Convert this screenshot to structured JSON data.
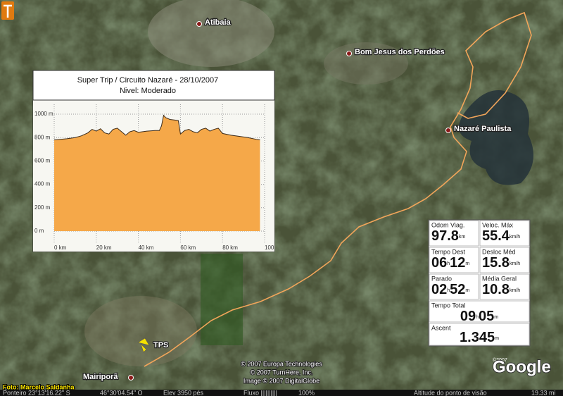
{
  "places": [
    "Atibaia",
    "Bom Jesus dos Perdões",
    "Nazaré Paulista",
    "TPS",
    "Mairiporã"
  ],
  "credit": "Foto: Marcelo Saldanha",
  "copyright": [
    "© 2007 Europa Technologies",
    "© 2007 TurnHere, Inc.",
    "Image © 2007 DigitalGlobe"
  ],
  "logo": "Google",
  "logo_year": "©2007",
  "status_bar": {
    "pointer": "Ponteiro 23°13'16.22\" S",
    "longitude": "46°30'04.54\" O",
    "elevation": "Elev 3950 pés",
    "stream": "Fluxo ||||||||||",
    "stream_percent": "100%",
    "eye_altitude_label": "Altitude do ponto de visão",
    "eye_altitude": "19.33 mi"
  },
  "gps_panel": {
    "cells": [
      {
        "label": "Odom Viag.",
        "parts": [
          {
            "num": "97.8",
            "unit": "km"
          }
        ]
      },
      {
        "label": "Veloc. Máx",
        "parts": [
          {
            "num": "55.4",
            "unit": "km/h"
          }
        ]
      },
      {
        "label": "Tempo Dest",
        "parts": [
          {
            "num": "06",
            "unit": "h"
          },
          {
            "num": "12",
            "unit": "m"
          }
        ]
      },
      {
        "label": "Desloc Méd",
        "parts": [
          {
            "num": "15.8",
            "unit": "km/h"
          }
        ]
      },
      {
        "label": "Parado",
        "parts": [
          {
            "num": "02",
            "unit": "h"
          },
          {
            "num": "52",
            "unit": "m"
          }
        ]
      },
      {
        "label": "Média Geral",
        "parts": [
          {
            "num": "10.8",
            "unit": "km/h"
          }
        ]
      },
      {
        "label": "Tempo Total",
        "parts": [
          {
            "num": "09",
            "unit": "h"
          },
          {
            "num": "05",
            "unit": "m"
          }
        ]
      },
      {
        "label": "Ascent",
        "parts": [
          {
            "num": "1.345",
            "unit": "m"
          }
        ]
      }
    ]
  },
  "chart_data": {
    "type": "area",
    "title": "Super Trip / Circuito Nazaré - 28/10/2007",
    "subtitle": "Nivel: Moderado",
    "x": [
      0,
      3,
      6,
      10,
      13,
      16,
      18,
      20,
      22,
      24,
      26,
      28,
      30,
      32,
      34,
      36,
      38,
      40,
      44,
      48,
      50,
      51,
      52,
      53,
      55,
      57,
      59,
      60,
      62,
      64,
      66,
      68,
      70,
      72,
      74,
      76,
      78,
      80,
      84,
      88,
      92,
      96,
      97.8
    ],
    "values": [
      780,
      785,
      790,
      800,
      815,
      840,
      870,
      855,
      875,
      840,
      830,
      870,
      880,
      850,
      820,
      850,
      860,
      845,
      855,
      860,
      860,
      900,
      990,
      970,
      955,
      950,
      945,
      830,
      860,
      870,
      850,
      840,
      870,
      880,
      855,
      870,
      880,
      835,
      820,
      810,
      800,
      785,
      780
    ],
    "color": "#f5a849",
    "line_color": "#3a2a1a",
    "xlim": [
      0,
      100
    ],
    "ylim": [
      0,
      1000
    ],
    "xticks": [
      {
        "value": 0,
        "label": "0 km"
      },
      {
        "value": 20,
        "label": "20 km"
      },
      {
        "value": 40,
        "label": "40 km"
      },
      {
        "value": 60,
        "label": "60 km"
      },
      {
        "value": 80,
        "label": "80 km"
      },
      {
        "value": 100,
        "label": "100"
      }
    ],
    "yticks": [
      {
        "value": 0,
        "label": "0 m"
      },
      {
        "value": 200,
        "label": "200 m"
      },
      {
        "value": 400,
        "label": "400 m"
      },
      {
        "value": 600,
        "label": "600 m"
      },
      {
        "value": 800,
        "label": "800 m"
      },
      {
        "value": 1000,
        "label": "1000 m"
      }
    ],
    "grid": true
  }
}
